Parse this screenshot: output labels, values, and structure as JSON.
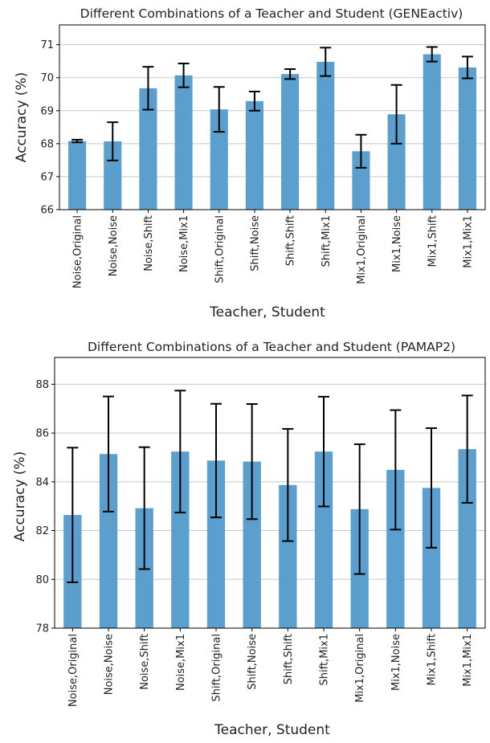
{
  "chart_data": [
    {
      "type": "bar",
      "title": "Different Combinations of a Teacher and Student (GENEactiv)",
      "xlabel": "Teacher, Student",
      "ylabel": "Accuracy (%)",
      "ylim": [
        66,
        71.6
      ],
      "yticks": [
        "66",
        "67",
        "68",
        "69",
        "70",
        "71"
      ],
      "grid": true,
      "categories": [
        "Noise,Original",
        "Noise,Noise",
        "Noise,Shift",
        "Noise,Mix1",
        "Shift,Original",
        "Shift,Noise",
        "Shift,Shift",
        "Shift,Mix1",
        "Mix1,Original",
        "Mix1,Noise",
        "Mix1,Shift",
        "Mix1,Mix1"
      ],
      "values": [
        68.08,
        68.07,
        69.68,
        70.07,
        69.04,
        69.29,
        70.11,
        70.48,
        67.77,
        68.89,
        70.71,
        70.31
      ],
      "errors": [
        0.04,
        0.58,
        0.65,
        0.36,
        0.68,
        0.29,
        0.15,
        0.43,
        0.5,
        0.89,
        0.22,
        0.33
      ]
    },
    {
      "type": "bar",
      "title": "Different Combinations of a Teacher and Student (PAMAP2)",
      "xlabel": "Teacher, Student",
      "ylabel": "Accuracy (%)",
      "ylim": [
        78,
        89.1
      ],
      "yticks": [
        "78",
        "80",
        "82",
        "84",
        "86",
        "88"
      ],
      "grid": true,
      "categories": [
        "Noise,Original",
        "Noise,Noise",
        "Noise,Shift",
        "Noise,Mix1",
        "Shift,Original",
        "Shift,Noise",
        "Shift,Shift",
        "Shift,Mix1",
        "Mix1,Original",
        "Mix1,Noise",
        "Mix1,Shift",
        "Mix1,Mix1"
      ],
      "values": [
        82.64,
        85.14,
        82.92,
        85.24,
        84.87,
        84.83,
        83.87,
        85.24,
        82.88,
        84.49,
        83.75,
        85.34
      ],
      "errors": [
        2.76,
        2.36,
        2.5,
        2.5,
        2.33,
        2.36,
        2.3,
        2.25,
        2.66,
        2.45,
        2.45,
        2.2
      ]
    }
  ]
}
